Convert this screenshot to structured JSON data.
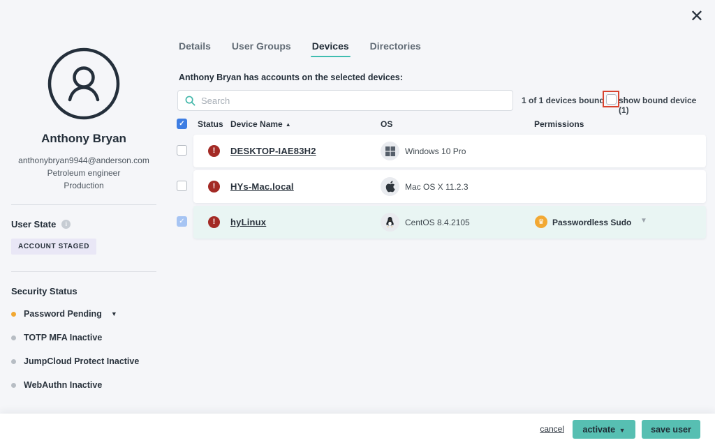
{
  "colors": {
    "accent_teal": "#57bfb2",
    "tab_underline": "#3fbdb0",
    "background": "#f5f6f9",
    "selected_row_bg": "#e9f5f3",
    "alert_red": "#a32a25",
    "checkbox_blue": "#3e7ee3",
    "checkbox_light_blue": "#a6c4f3",
    "badge_lavender": "#e9e7f6",
    "annotation_red": "#d8442f",
    "pending_orange": "#f2a832",
    "inactive_gray": "#b7bdc4"
  },
  "modal": {
    "close_label": "✕"
  },
  "sidebar": {
    "name": "Anthony Bryan",
    "email": "anthonybryan9944@anderson.com",
    "job_title": "Petroleum engineer",
    "department": "Production",
    "user_state_label": "User State",
    "user_state_badge": "ACCOUNT STAGED",
    "security_status_label": "Security Status",
    "security_items": [
      {
        "label": "Password Pending",
        "dot_color": "#f2a832",
        "has_caret": true
      },
      {
        "label": "TOTP MFA Inactive",
        "dot_color": "#b7bdc4",
        "has_caret": false
      },
      {
        "label": "JumpCloud Protect Inactive",
        "dot_color": "#b7bdc4",
        "has_caret": false
      },
      {
        "label": "WebAuthn Inactive",
        "dot_color": "#b7bdc4",
        "has_caret": false
      }
    ]
  },
  "tabs": [
    {
      "label": "Details",
      "active": false
    },
    {
      "label": "User Groups",
      "active": false
    },
    {
      "label": "Devices",
      "active": true
    },
    {
      "label": "Directories",
      "active": false
    }
  ],
  "devices_panel": {
    "description": "Anthony Bryan has accounts on the selected devices:",
    "search_placeholder": "Search",
    "bound_summary": "1 of 1 devices bound",
    "show_bound_label": "show bound device (1)",
    "show_bound_checked": false,
    "table": {
      "headers": {
        "status": "Status",
        "device_name": "Device Name",
        "os": "OS",
        "permissions": "Permissions"
      },
      "sort_arrow": "▲",
      "rows": [
        {
          "checked": false,
          "selected": false,
          "status": "alert",
          "device_name": "DESKTOP-IAE83H2",
          "os_icon": "windows",
          "os": "Windows 10 Pro",
          "permission": null
        },
        {
          "checked": false,
          "selected": false,
          "status": "alert",
          "device_name": "HYs-Mac.local",
          "os_icon": "apple",
          "os": "Mac OS X 11.2.3",
          "permission": null
        },
        {
          "checked": true,
          "selected": true,
          "status": "alert",
          "device_name": "hyLinux",
          "os_icon": "linux",
          "os": "CentOS 8.4.2105",
          "permission": "Passwordless Sudo"
        }
      ]
    }
  },
  "footer": {
    "cancel_label": "cancel",
    "activate_label": "activate",
    "save_label": "save user"
  }
}
